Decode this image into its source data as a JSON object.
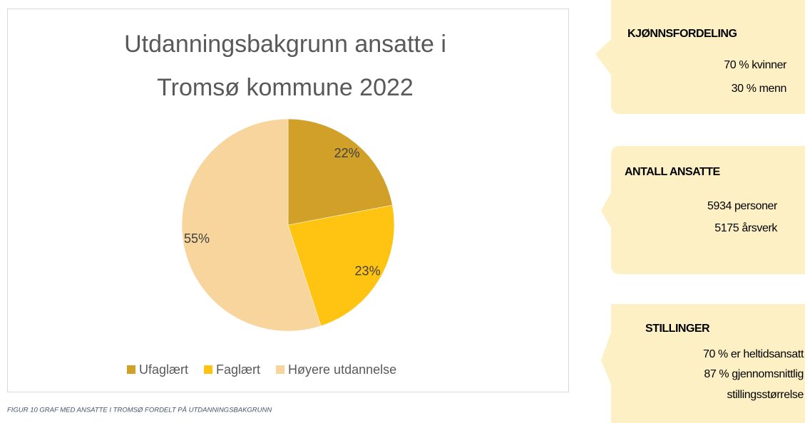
{
  "chart_data": {
    "type": "pie",
    "title": [
      "Utdanningsbakgrunn ansatte i",
      "Tromsø kommune 2022"
    ],
    "categories": [
      "Ufaglært",
      "Faglært",
      "Høyere utdannelse"
    ],
    "values": [
      22,
      23,
      55
    ],
    "value_labels": [
      "22%",
      "23%",
      "55%"
    ],
    "colors": [
      "#d1a028",
      "#ffc312",
      "#f7d59c"
    ],
    "legend": "bottom"
  },
  "caption": "FIGUR 10 GRAF MED ANSATTE I TROMSØ FORDELT PÅ UTDANNINGSBAKGRUNN",
  "callouts": [
    {
      "title": "KJØNNSFORDELING",
      "lines": [
        "70 % kvinner",
        "30 % menn"
      ]
    },
    {
      "title": "ANTALL ANSATTE",
      "lines": [
        "5934 personer",
        "5175 årsverk"
      ]
    },
    {
      "title": "STILLINGER",
      "lines": [
        "70 % er heltidsansatt",
        "87 % gjennomsnittlig",
        "stillingsstørrelse"
      ]
    }
  ]
}
